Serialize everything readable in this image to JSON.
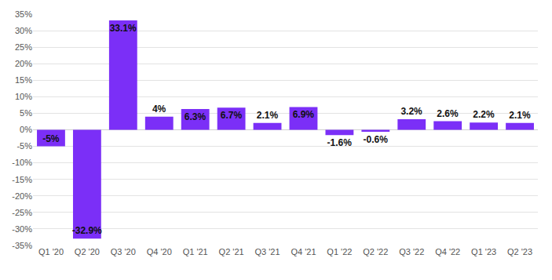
{
  "chart_data": {
    "type": "bar",
    "categories": [
      "Q1 '20",
      "Q2 '20",
      "Q3 '20",
      "Q4 '20",
      "Q1 '21",
      "Q2 '21",
      "Q3 '21",
      "Q4 '21",
      "Q1 '22",
      "Q2 '22",
      "Q3 '22",
      "Q4 '22",
      "Q1 '23",
      "Q2 '23"
    ],
    "values": [
      -5,
      -32.9,
      33.1,
      4,
      6.3,
      6.7,
      2.1,
      6.9,
      -1.6,
      -0.6,
      3.2,
      2.6,
      2.2,
      2.1
    ],
    "value_labels": [
      "-5%",
      "-32.9%",
      "33.1%",
      "4%",
      "6.3%",
      "6.7%",
      "2.1%",
      "6.9%",
      "-1.6%",
      "-0.6%",
      "3.2%",
      "2.6%",
      "2.2%",
      "2.1%"
    ],
    "color": "#7b2ff7",
    "ylim": [
      -35,
      35
    ],
    "yticks": [
      {
        "value": -35,
        "label": "-35%"
      },
      {
        "value": -30,
        "label": "-30%"
      },
      {
        "value": -25,
        "label": "-25%"
      },
      {
        "value": -20,
        "label": "-20%"
      },
      {
        "value": -15,
        "label": "-15%"
      },
      {
        "value": -10,
        "label": "-10%"
      },
      {
        "value": -5,
        "label": "-5%"
      },
      {
        "value": 0,
        "label": "0%"
      },
      {
        "value": 5,
        "label": "5%"
      },
      {
        "value": 10,
        "label": "10%"
      },
      {
        "value": 15,
        "label": "15%"
      },
      {
        "value": 20,
        "label": "20%"
      },
      {
        "value": 25,
        "label": "25%"
      },
      {
        "value": 30,
        "label": "30%"
      },
      {
        "value": 35,
        "label": "35%"
      }
    ],
    "grid": true,
    "data_labels": true
  }
}
